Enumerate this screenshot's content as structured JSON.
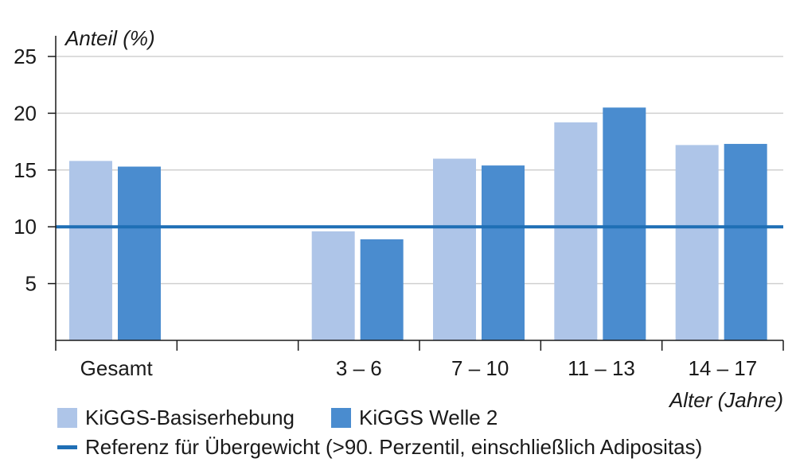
{
  "chart_data": {
    "type": "bar",
    "ylabel": "Anteil (%)",
    "xlabel": "Alter (Jahre)",
    "ylim": [
      0,
      25
    ],
    "yticks": [
      5,
      10,
      15,
      20,
      25
    ],
    "categories": [
      "Gesamt",
      "",
      "3 – 6",
      "7 – 10",
      "11 – 13",
      "14 – 17"
    ],
    "series": [
      {
        "name": "KiGGS-Basiserhebung",
        "color": "#aec5e8",
        "values": [
          15.8,
          null,
          9.6,
          16.0,
          19.2,
          17.2
        ]
      },
      {
        "name": "KiGGS Welle 2",
        "color": "#4a8ccf",
        "values": [
          15.3,
          null,
          8.9,
          15.4,
          20.5,
          17.3
        ]
      }
    ],
    "reference_line": {
      "value": 10,
      "color": "#1f6fb5",
      "label": "Referenz für Übergewicht (>90. Perzentil, einschließlich Adipositas)"
    },
    "grid": true,
    "legend_position": "bottom-left"
  }
}
